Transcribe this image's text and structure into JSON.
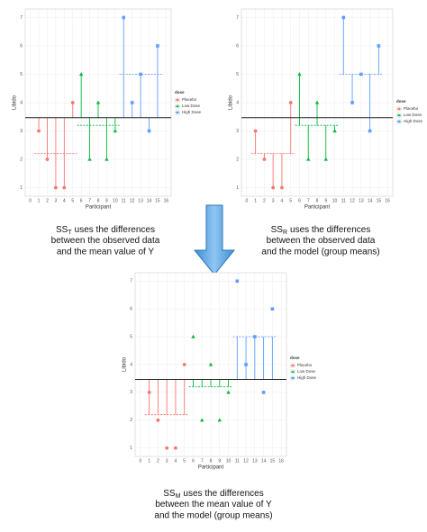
{
  "chart_data": [
    {
      "type": "scatter",
      "mode": "total",
      "x_label": "Participant",
      "y_label": "Libido",
      "legend_title": "dose",
      "xlim": [
        -0.6,
        16.6
      ],
      "ylim": [
        0.7,
        7.3
      ],
      "xticks": [
        0,
        1,
        2,
        3,
        4,
        5,
        6,
        7,
        8,
        9,
        10,
        11,
        12,
        13,
        14,
        15,
        16
      ],
      "yticks": [
        1,
        2,
        3,
        4,
        5,
        6,
        7
      ],
      "grid": true,
      "grand_mean": 3.467,
      "series": [
        {
          "name": "Placebo",
          "color": "#f8766d",
          "shape": "circle",
          "x": [
            1,
            2,
            3,
            4,
            5
          ],
          "values": [
            3,
            2,
            1,
            1,
            4
          ],
          "mean": 2.2
        },
        {
          "name": "Low Dose",
          "color": "#00ba38",
          "shape": "triangle",
          "x": [
            6,
            7,
            8,
            9,
            10
          ],
          "values": [
            5,
            2,
            4,
            2,
            3
          ],
          "mean": 3.2
        },
        {
          "name": "High Dose",
          "color": "#619cff",
          "shape": "square",
          "x": [
            11,
            12,
            13,
            14,
            15
          ],
          "values": [
            7,
            4,
            5,
            3,
            6
          ],
          "mean": 5.0
        }
      ]
    },
    {
      "type": "scatter",
      "mode": "residual",
      "x_label": "Participant",
      "y_label": "Libido",
      "legend_title": "dose",
      "xlim": [
        -0.6,
        16.6
      ],
      "ylim": [
        0.7,
        7.3
      ],
      "xticks": [
        0,
        1,
        2,
        3,
        4,
        5,
        6,
        7,
        8,
        9,
        10,
        11,
        12,
        13,
        14,
        15,
        16
      ],
      "yticks": [
        1,
        2,
        3,
        4,
        5,
        6,
        7
      ],
      "grid": true,
      "grand_mean": 3.467,
      "series": [
        {
          "name": "Placebo",
          "color": "#f8766d",
          "shape": "circle",
          "x": [
            1,
            2,
            3,
            4,
            5
          ],
          "values": [
            3,
            2,
            1,
            1,
            4
          ],
          "mean": 2.2
        },
        {
          "name": "Low Dose",
          "color": "#00ba38",
          "shape": "triangle",
          "x": [
            6,
            7,
            8,
            9,
            10
          ],
          "values": [
            5,
            2,
            4,
            2,
            3
          ],
          "mean": 3.2
        },
        {
          "name": "High Dose",
          "color": "#619cff",
          "shape": "square",
          "x": [
            11,
            12,
            13,
            14,
            15
          ],
          "values": [
            7,
            4,
            5,
            3,
            6
          ],
          "mean": 5.0
        }
      ]
    },
    {
      "type": "scatter",
      "mode": "model",
      "x_label": "Participant",
      "y_label": "Libido",
      "legend_title": "dose",
      "xlim": [
        -0.6,
        16.6
      ],
      "ylim": [
        0.7,
        7.3
      ],
      "xticks": [
        0,
        1,
        2,
        3,
        4,
        5,
        6,
        7,
        8,
        9,
        10,
        11,
        12,
        13,
        14,
        15,
        16
      ],
      "yticks": [
        1,
        2,
        3,
        4,
        5,
        6,
        7
      ],
      "grid": true,
      "grand_mean": 3.467,
      "series": [
        {
          "name": "Placebo",
          "color": "#f8766d",
          "shape": "circle",
          "x": [
            1,
            2,
            3,
            4,
            5
          ],
          "values": [
            3,
            2,
            1,
            1,
            4
          ],
          "mean": 2.2
        },
        {
          "name": "Low Dose",
          "color": "#00ba38",
          "shape": "triangle",
          "x": [
            6,
            7,
            8,
            9,
            10
          ],
          "values": [
            5,
            2,
            4,
            2,
            3
          ],
          "mean": 3.2
        },
        {
          "name": "High Dose",
          "color": "#619cff",
          "shape": "square",
          "x": [
            11,
            12,
            13,
            14,
            15
          ],
          "values": [
            7,
            4,
            5,
            3,
            6
          ],
          "mean": 5.0
        }
      ]
    }
  ],
  "captions": [
    {
      "symbol": "SS",
      "subscript": "T",
      "lines": [
        "uses the differences",
        "between the observed data",
        "and the mean value of Y"
      ]
    },
    {
      "symbol": "SS",
      "subscript": "R",
      "lines": [
        "uses the differences",
        "between the observed data",
        "and the model (group means)"
      ]
    },
    {
      "symbol": "SS",
      "subscript": "M",
      "lines": [
        "uses the differences",
        "between the mean value of Y",
        "and the model (group means)"
      ]
    }
  ]
}
